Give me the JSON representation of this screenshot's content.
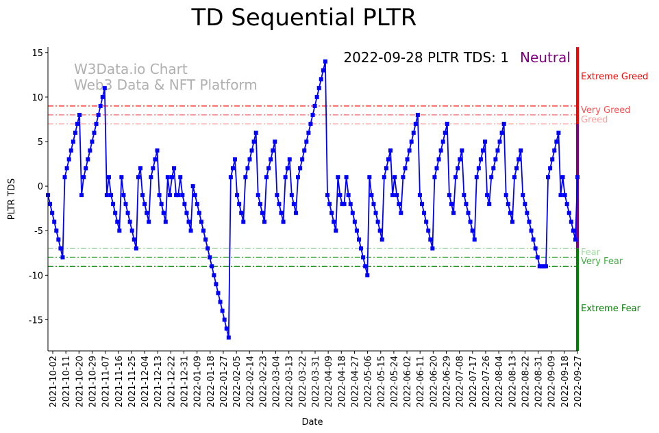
{
  "chart_data": {
    "type": "line",
    "title": "TD Sequential PLTR",
    "xlabel": "Date",
    "ylabel": "PLTR TDS",
    "ylim": [
      -18.5,
      15.6
    ],
    "yticks": [
      15,
      10,
      5,
      0,
      -5,
      -10,
      -15
    ],
    "xticks": [
      "2021-10-02",
      "2021-10-11",
      "2021-10-20",
      "2021-10-29",
      "2021-11-07",
      "2021-11-16",
      "2021-11-25",
      "2021-12-04",
      "2021-12-13",
      "2021-12-22",
      "2021-12-31",
      "2022-01-09",
      "2022-01-18",
      "2022-01-27",
      "2022-02-05",
      "2022-02-14",
      "2022-02-23",
      "2022-03-04",
      "2022-03-13",
      "2022-03-22",
      "2022-03-31",
      "2022-04-09",
      "2022-04-18",
      "2022-04-27",
      "2022-05-06",
      "2022-05-15",
      "2022-05-24",
      "2022-06-02",
      "2022-06-11",
      "2022-06-20",
      "2022-06-29",
      "2022-07-08",
      "2022-07-17",
      "2022-07-26",
      "2022-08-04",
      "2022-08-13",
      "2022-08-22",
      "2022-08-31",
      "2022-09-09",
      "2022-09-18",
      "2022-09-27"
    ],
    "series": [
      {
        "name": "PLTR TDS",
        "color": "#0000ff",
        "values": [
          -1,
          -2,
          -3,
          -4,
          -5,
          -6,
          -7,
          -8,
          1,
          2,
          3,
          4,
          5,
          6,
          7,
          8,
          -1,
          1,
          2,
          3,
          4,
          5,
          6,
          7,
          8,
          9,
          10,
          11,
          -1,
          1,
          -1,
          -2,
          -3,
          -4,
          -5,
          1,
          -1,
          -2,
          -3,
          -4,
          -5,
          -6,
          -7,
          1,
          2,
          -1,
          -2,
          -3,
          -4,
          1,
          2,
          3,
          4,
          -1,
          -2,
          -3,
          -4,
          1,
          -1,
          1,
          2,
          -1,
          -1,
          1,
          -1,
          -2,
          -3,
          -4,
          -5,
          0,
          -1,
          -2,
          -3,
          -4,
          -5,
          -6,
          -7,
          -8,
          -9,
          -10,
          -11,
          -12,
          -13,
          -14,
          -15,
          -16,
          -17,
          1,
          2,
          3,
          -1,
          -2,
          -3,
          -4,
          1,
          2,
          3,
          4,
          5,
          6,
          -1,
          -2,
          -3,
          -4,
          1,
          2,
          3,
          4,
          5,
          -1,
          -2,
          -3,
          -4,
          1,
          2,
          3,
          -1,
          -2,
          -3,
          1,
          2,
          3,
          4,
          5,
          6,
          7,
          8,
          9,
          10,
          11,
          12,
          13,
          14,
          -1,
          -2,
          -3,
          -4,
          -5,
          1,
          -1,
          -2,
          -2,
          1,
          -1,
          -2,
          -3,
          -4,
          -5,
          -6,
          -7,
          -8,
          -9,
          -10,
          1,
          -1,
          -2,
          -3,
          -4,
          -5,
          -6,
          1,
          2,
          3,
          4,
          -1,
          1,
          -1,
          -2,
          -3,
          1,
          2,
          3,
          4,
          5,
          6,
          7,
          8,
          -1,
          -2,
          -3,
          -4,
          -5,
          -6,
          -7,
          1,
          2,
          3,
          4,
          5,
          6,
          7,
          -1,
          -2,
          -3,
          1,
          2,
          3,
          4,
          -1,
          -2,
          -3,
          -4,
          -5,
          -6,
          1,
          2,
          3,
          4,
          5,
          -1,
          -2,
          1,
          2,
          3,
          4,
          5,
          6,
          7,
          -1,
          -2,
          -3,
          -4,
          1,
          2,
          3,
          4,
          -1,
          -2,
          -3,
          -4,
          -5,
          -6,
          -7,
          -8,
          -9,
          -9,
          -9,
          -9,
          1,
          2,
          3,
          4,
          5,
          6,
          -1,
          1,
          -1,
          -2,
          -3,
          -4,
          -5,
          -6,
          1
        ]
      }
    ],
    "levels": [
      {
        "value": 9,
        "label": "Extreme Greed",
        "color": "#ff0000"
      },
      {
        "value": 8,
        "label": "Very Greed",
        "color": "#ff5050"
      },
      {
        "value": 7,
        "label": "Greed",
        "color": "#ffa0a0"
      },
      {
        "value": -7,
        "label": "Fear",
        "color": "#a0d8a0"
      },
      {
        "value": -8,
        "label": "Very Fear",
        "color": "#40b040"
      },
      {
        "value": -9,
        "label": "Extreme Fear",
        "color": "#008000"
      }
    ],
    "zone_colors": {
      "greed": "#ff0000",
      "neutral": "#800080",
      "fear": "#008000"
    },
    "annotation": {
      "text": "2022-09-28 PLTR TDS: 1",
      "status": "Neutral",
      "status_color": "#800080"
    },
    "watermark": [
      "W3Data.io Chart",
      "Web3 Data & NFT Platform"
    ]
  }
}
